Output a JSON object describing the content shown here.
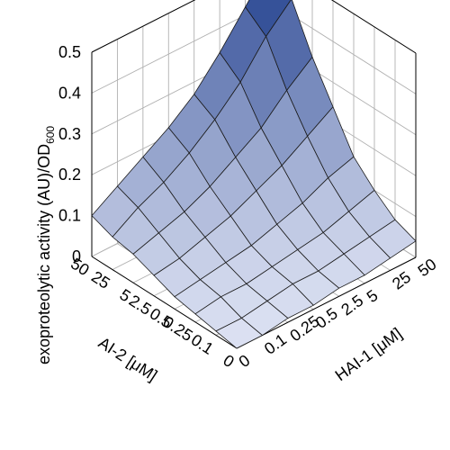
{
  "chart_data": {
    "type": "surface",
    "title": "",
    "zlabel_main": "exoproteolytic activity (AU)/OD",
    "zlabel_sub": "600",
    "xlabel": "AI-2 [μM]",
    "ylabel": "HAI-1 [μM]",
    "x_categories": [
      "0",
      "0.1",
      "0.25",
      "0.5",
      "2.5",
      "5",
      "25",
      "50"
    ],
    "y_categories": [
      "0",
      "0.1",
      "0.25",
      "0.5",
      "2.5",
      "5",
      "25",
      "50"
    ],
    "z_ticks": [
      "0",
      "0.1",
      "0.2",
      "0.3",
      "0.4",
      "0.5"
    ],
    "zlim": [
      0,
      0.5
    ],
    "grid": true,
    "colormap": [
      "#dde2f3",
      "#1d3c8c"
    ],
    "values": [
      [
        0.0,
        0.0,
        0.01,
        0.01,
        0.02,
        0.02,
        0.03,
        0.04
      ],
      [
        0.01,
        0.01,
        0.02,
        0.03,
        0.03,
        0.04,
        0.05,
        0.06
      ],
      [
        0.02,
        0.03,
        0.03,
        0.04,
        0.05,
        0.06,
        0.08,
        0.1
      ],
      [
        0.03,
        0.04,
        0.05,
        0.06,
        0.08,
        0.1,
        0.13,
        0.15
      ],
      [
        0.05,
        0.06,
        0.08,
        0.1,
        0.13,
        0.16,
        0.2,
        0.24
      ],
      [
        0.07,
        0.09,
        0.11,
        0.14,
        0.18,
        0.22,
        0.28,
        0.33
      ],
      [
        0.08,
        0.12,
        0.15,
        0.19,
        0.24,
        0.3,
        0.38,
        0.44
      ],
      [
        0.1,
        0.14,
        0.18,
        0.22,
        0.27,
        0.34,
        0.42,
        0.5
      ]
    ]
  }
}
